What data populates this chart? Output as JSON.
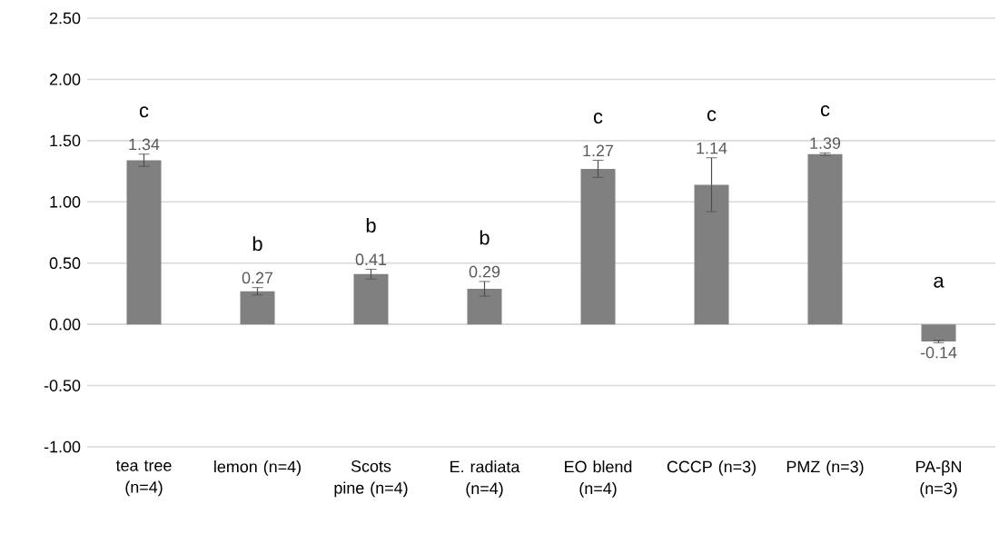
{
  "chart_data": {
    "type": "bar",
    "categories": [
      "tea tree (n=4)",
      "lemon (n=4)",
      "Scots pine (n=4)",
      "E. radiata (n=4)",
      "EO blend (n=4)",
      "CCCP (n=3)",
      "PMZ (n=3)",
      "PA-βN (n=3)"
    ],
    "values": [
      1.34,
      0.27,
      0.41,
      0.29,
      1.27,
      1.14,
      1.39,
      -0.14
    ],
    "errors": [
      0.05,
      0.03,
      0.04,
      0.06,
      0.07,
      0.22,
      0.01,
      0.01
    ],
    "color": "#808080",
    "data_labels": true,
    "ylim": [
      -1.0,
      2.5
    ],
    "yticks": [
      {
        "value": -1.0,
        "label": "-1.00"
      },
      {
        "value": -0.5,
        "label": "-0.50"
      },
      {
        "value": 0.0,
        "label": "0.00"
      },
      {
        "value": 0.5,
        "label": "0.50"
      },
      {
        "value": 1.0,
        "label": "1.00"
      },
      {
        "value": 1.5,
        "label": "1.50"
      },
      {
        "value": 2.0,
        "label": "2.00"
      },
      {
        "value": 2.5,
        "label": "2.50"
      }
    ],
    "grid": "y",
    "annotations": [
      "c",
      "b",
      "b",
      "b",
      "c",
      "c",
      "c",
      "a"
    ]
  }
}
